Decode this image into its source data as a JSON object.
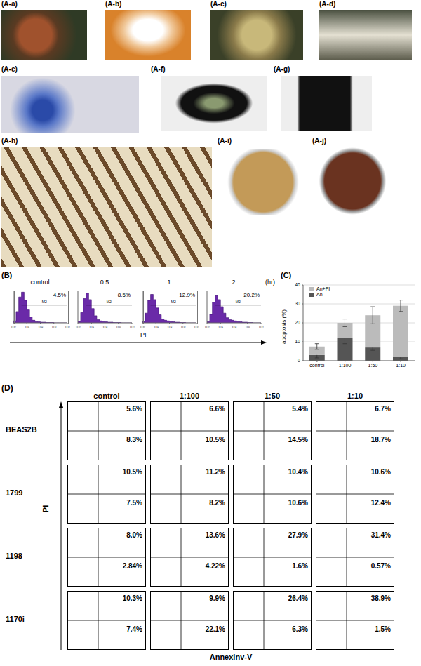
{
  "photo_labels": [
    "(A-a)",
    "(A-b)",
    "(A-c)",
    "(A-d)",
    "(A-e)",
    "(A-f)",
    "(A-g)",
    "(A-h)",
    "(A-i)",
    "(A-j)"
  ],
  "chart_data": [
    {
      "type": "histogram",
      "panel_label": "(B)",
      "x_label": "PI",
      "time_unit": "(hr)",
      "log": "x",
      "xlim": [
        1,
        10000
      ],
      "xticks": [
        {
          "value": 1,
          "label": "10⁰"
        },
        {
          "value": 10,
          "label": "10¹"
        },
        {
          "value": 100,
          "label": "10²"
        },
        {
          "value": 1000,
          "label": "10³"
        },
        {
          "value": 10000,
          "label": "10⁴"
        }
      ],
      "ylim": [
        0,
        100
      ],
      "tick_labels": "x",
      "color": "#6a2aa8",
      "bins": [
        1,
        1.6,
        2.5,
        4,
        6.3,
        10,
        16,
        25,
        40,
        63,
        100,
        160,
        250,
        400,
        630,
        1000,
        1600,
        2500,
        4000,
        6300,
        10000
      ],
      "gate_label": "M2",
      "gate": [
        4,
        10000
      ],
      "panels": [
        {
          "title": "control",
          "counts": [
            6,
            35,
            80,
            95,
            70,
            40,
            18,
            8,
            4,
            3,
            2,
            2,
            1,
            1,
            1,
            0,
            0,
            0,
            0,
            0
          ],
          "value": 4.5,
          "value_label": "4.5%"
        },
        {
          "title": "0.5",
          "counts": [
            5,
            32,
            75,
            92,
            72,
            44,
            22,
            10,
            6,
            4,
            3,
            2,
            2,
            1,
            1,
            1,
            0,
            0,
            0,
            0
          ],
          "value": 8.5,
          "value_label": "8.5%"
        },
        {
          "title": "1",
          "counts": [
            5,
            30,
            70,
            88,
            72,
            46,
            25,
            12,
            8,
            6,
            4,
            3,
            2,
            2,
            1,
            1,
            0,
            0,
            0,
            0
          ],
          "value": 12.9,
          "value_label": "12.9%"
        },
        {
          "title": "2",
          "counts": [
            4,
            26,
            64,
            84,
            72,
            50,
            30,
            16,
            10,
            8,
            6,
            4,
            3,
            2,
            2,
            1,
            1,
            0,
            0,
            0
          ],
          "value": 20.2,
          "value_label": "20.2%"
        }
      ]
    },
    {
      "type": "bar",
      "panel_label": "(C)",
      "stacked": true,
      "y_label": "apoptosis (%)",
      "categories": [
        "control",
        "1:100",
        "1:50",
        "1:10"
      ],
      "ylim": [
        0,
        40
      ],
      "yticks": [
        0,
        10,
        20,
        30,
        40
      ],
      "grid": true,
      "legend": "top-left",
      "series": [
        {
          "name": "An",
          "color": "#555555",
          "values": [
            3,
            12,
            7,
            2
          ],
          "errors": [
            1.5,
            3,
            1.5,
            1
          ]
        },
        {
          "name": "An+PI",
          "color": "#bbbbbb",
          "values": [
            4.5,
            8,
            17,
            27
          ],
          "errors": [
            1.5,
            2,
            4.5,
            3
          ]
        }
      ]
    },
    {
      "type": "quadrant",
      "panel_label": "(D)",
      "x_label": "Annexinv-V",
      "y_label": "PI",
      "columns": [
        "control",
        "1:100",
        "1:50",
        "1:10"
      ],
      "rows": [
        {
          "name": "BEAS2B",
          "upper_right": [
            5.6,
            6.6,
            5.4,
            6.7
          ],
          "upper_right_labels": [
            "5.6%",
            "6.6%",
            "5.4%",
            "6.7%"
          ],
          "lower_right": [
            8.3,
            10.5,
            14.5,
            18.7
          ],
          "lower_right_labels": [
            "8.3%",
            "10.5%",
            "14.5%",
            "18.7%"
          ]
        },
        {
          "name": "1799",
          "upper_right": [
            10.5,
            11.2,
            10.4,
            10.6
          ],
          "upper_right_labels": [
            "10.5%",
            "11.2%",
            "10.4%",
            "10.6%"
          ],
          "lower_right": [
            7.5,
            8.2,
            10.6,
            12.4
          ],
          "lower_right_labels": [
            "7.5%",
            "8.2%",
            "10.6%",
            "12.4%"
          ]
        },
        {
          "name": "1198",
          "upper_right": [
            8.0,
            13.6,
            27.9,
            31.4
          ],
          "upper_right_labels": [
            "8.0%",
            "13.6%",
            "27.9%",
            "31.4%"
          ],
          "lower_right": [
            2.84,
            4.22,
            1.6,
            0.57
          ],
          "lower_right_labels": [
            "2.84%",
            "4.22%",
            "1.6%",
            "0.57%"
          ]
        },
        {
          "name": "1170i",
          "upper_right": [
            10.3,
            9.9,
            26.4,
            38.9
          ],
          "upper_right_labels": [
            "10.3%",
            "9.9%",
            "26.4%",
            "38.9%"
          ],
          "lower_right": [
            7.4,
            22.1,
            6.3,
            1.5
          ],
          "lower_right_labels": [
            "7.4%",
            "22.1%",
            "6.3%",
            "1.5%"
          ]
        }
      ]
    }
  ]
}
